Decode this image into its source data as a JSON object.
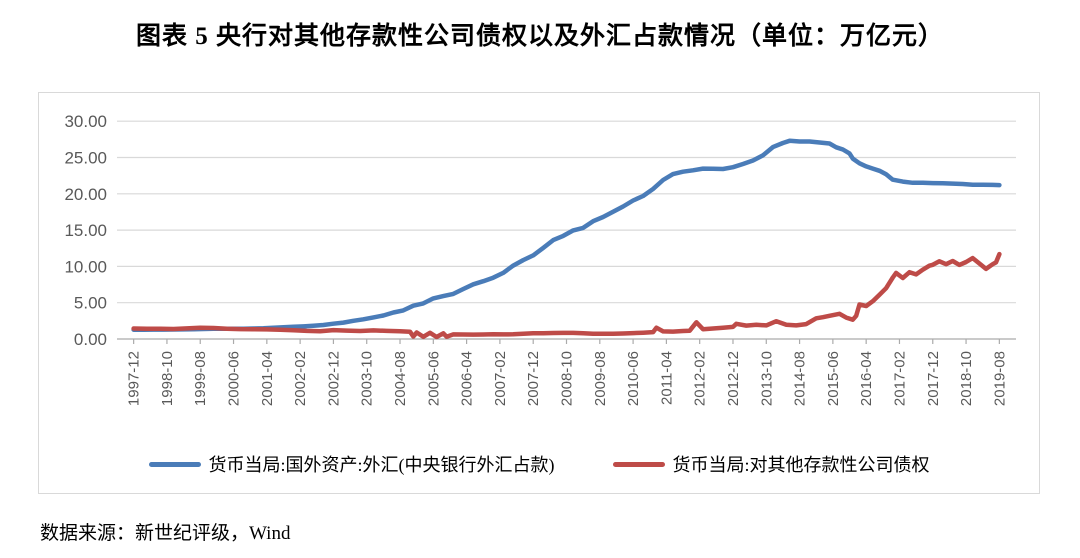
{
  "title": "图表 5  央行对其他存款性公司债权以及外汇占款情况（单位：万亿元）",
  "footer": "数据来源：新世纪评级，Wind",
  "colors": {
    "blue_series": "#4A7CB8",
    "red_series": "#BE4B48",
    "gridline": "#D9D9D9",
    "axis_line": "#ABABAB",
    "tick": "#ABABAB",
    "axis_label": "#595959",
    "chart_border": "#D9D9D9"
  },
  "chart_data": {
    "type": "line",
    "title": "央行对其他存款性公司债权以及外汇占款情况",
    "unit": "万亿元",
    "grid": true,
    "legend_position": "bottom",
    "ylim": [
      0,
      30
    ],
    "yticks": [
      0,
      5,
      10,
      15,
      20,
      25,
      30
    ],
    "ytick_labels": [
      "0.00",
      "5.00",
      "10.00",
      "15.00",
      "20.00",
      "25.00",
      "30.00"
    ],
    "x_start": "1997-12",
    "x_end": "2019-08",
    "x_axis_labels": [
      "1997-12",
      "1998-10",
      "1999-08",
      "2000-06",
      "2001-04",
      "2002-02",
      "2002-12",
      "2003-10",
      "2004-08",
      "2005-06",
      "2006-04",
      "2007-02",
      "2007-12",
      "2008-10",
      "2009-08",
      "2010-06",
      "2011-04",
      "2012-02",
      "2012-12",
      "2013-10",
      "2014-08",
      "2015-06",
      "2016-04",
      "2017-02",
      "2017-12",
      "2018-10",
      "2019-08"
    ],
    "series": [
      {
        "name": "货币当局:国外资产:外汇(中央银行外汇占款)",
        "color": "#4A7CB8",
        "points": [
          [
            "1997-12",
            1.28
          ],
          [
            "1998-03",
            1.28
          ],
          [
            "1998-06",
            1.3
          ],
          [
            "1998-09",
            1.3
          ],
          [
            "1998-12",
            1.31
          ],
          [
            "1999-03",
            1.32
          ],
          [
            "1999-06",
            1.34
          ],
          [
            "1999-09",
            1.38
          ],
          [
            "1999-12",
            1.41
          ],
          [
            "2000-03",
            1.41
          ],
          [
            "2000-06",
            1.41
          ],
          [
            "2000-09",
            1.42
          ],
          [
            "2000-12",
            1.45
          ],
          [
            "2001-03",
            1.48
          ],
          [
            "2001-06",
            1.55
          ],
          [
            "2001-09",
            1.62
          ],
          [
            "2001-12",
            1.68
          ],
          [
            "2002-03",
            1.74
          ],
          [
            "2002-06",
            1.82
          ],
          [
            "2002-09",
            1.93
          ],
          [
            "2002-12",
            2.11
          ],
          [
            "2003-03",
            2.26
          ],
          [
            "2003-06",
            2.5
          ],
          [
            "2003-09",
            2.72
          ],
          [
            "2003-12",
            2.98
          ],
          [
            "2004-03",
            3.24
          ],
          [
            "2004-06",
            3.65
          ],
          [
            "2004-09",
            3.94
          ],
          [
            "2004-12",
            4.59
          ],
          [
            "2005-03",
            4.91
          ],
          [
            "2005-06",
            5.59
          ],
          [
            "2005-09",
            5.91
          ],
          [
            "2005-12",
            6.21
          ],
          [
            "2006-03",
            6.89
          ],
          [
            "2006-06",
            7.53
          ],
          [
            "2006-09",
            7.96
          ],
          [
            "2006-12",
            8.44
          ],
          [
            "2007-03",
            9.1
          ],
          [
            "2007-06",
            10.11
          ],
          [
            "2007-09",
            10.87
          ],
          [
            "2007-12",
            11.52
          ],
          [
            "2008-03",
            12.55
          ],
          [
            "2008-06",
            13.62
          ],
          [
            "2008-09",
            14.2
          ],
          [
            "2008-12",
            14.96
          ],
          [
            "2009-03",
            15.3
          ],
          [
            "2009-06",
            16.23
          ],
          [
            "2009-09",
            16.8
          ],
          [
            "2009-12",
            17.52
          ],
          [
            "2010-03",
            18.25
          ],
          [
            "2010-06",
            19.08
          ],
          [
            "2010-09",
            19.7
          ],
          [
            "2010-12",
            20.68
          ],
          [
            "2011-03",
            21.9
          ],
          [
            "2011-06",
            22.72
          ],
          [
            "2011-09",
            23.05
          ],
          [
            "2011-12",
            23.24
          ],
          [
            "2012-03",
            23.47
          ],
          [
            "2012-06",
            23.44
          ],
          [
            "2012-09",
            23.42
          ],
          [
            "2012-12",
            23.67
          ],
          [
            "2013-03",
            24.1
          ],
          [
            "2013-06",
            24.58
          ],
          [
            "2013-09",
            25.29
          ],
          [
            "2013-12",
            26.43
          ],
          [
            "2014-03",
            27.0
          ],
          [
            "2014-05",
            27.3
          ],
          [
            "2014-08",
            27.21
          ],
          [
            "2014-11",
            27.21
          ],
          [
            "2015-02",
            27.07
          ],
          [
            "2015-05",
            26.93
          ],
          [
            "2015-07",
            26.41
          ],
          [
            "2015-09",
            26.1
          ],
          [
            "2015-11",
            25.56
          ],
          [
            "2015-12",
            24.85
          ],
          [
            "2016-02",
            24.2
          ],
          [
            "2016-04",
            23.78
          ],
          [
            "2016-06",
            23.47
          ],
          [
            "2016-08",
            23.17
          ],
          [
            "2016-10",
            22.68
          ],
          [
            "2016-12",
            21.94
          ],
          [
            "2017-03",
            21.68
          ],
          [
            "2017-06",
            21.52
          ],
          [
            "2017-09",
            21.51
          ],
          [
            "2017-12",
            21.48
          ],
          [
            "2018-03",
            21.45
          ],
          [
            "2018-06",
            21.4
          ],
          [
            "2018-09",
            21.35
          ],
          [
            "2018-12",
            21.26
          ],
          [
            "2019-03",
            21.25
          ],
          [
            "2019-06",
            21.23
          ],
          [
            "2019-08",
            21.2
          ]
        ]
      },
      {
        "name": "货币当局:对其他存款性公司债权",
        "color": "#BE4B48",
        "points": [
          [
            "1997-12",
            1.44
          ],
          [
            "1998-04",
            1.42
          ],
          [
            "1998-08",
            1.4
          ],
          [
            "1998-12",
            1.38
          ],
          [
            "1999-04",
            1.46
          ],
          [
            "1999-08",
            1.55
          ],
          [
            "1999-12",
            1.52
          ],
          [
            "2000-04",
            1.42
          ],
          [
            "2000-08",
            1.37
          ],
          [
            "2000-12",
            1.35
          ],
          [
            "2001-04",
            1.32
          ],
          [
            "2001-08",
            1.27
          ],
          [
            "2001-12",
            1.2
          ],
          [
            "2002-04",
            1.12
          ],
          [
            "2002-08",
            1.08
          ],
          [
            "2002-12",
            1.23
          ],
          [
            "2003-04",
            1.16
          ],
          [
            "2003-08",
            1.1
          ],
          [
            "2003-12",
            1.18
          ],
          [
            "2004-04",
            1.12
          ],
          [
            "2004-08",
            1.06
          ],
          [
            "2004-11",
            1.0
          ],
          [
            "2004-12",
            0.34
          ],
          [
            "2005-01",
            0.9
          ],
          [
            "2005-03",
            0.3
          ],
          [
            "2005-05",
            0.85
          ],
          [
            "2005-07",
            0.28
          ],
          [
            "2005-09",
            0.78
          ],
          [
            "2005-10",
            0.32
          ],
          [
            "2005-12",
            0.64
          ],
          [
            "2006-03",
            0.62
          ],
          [
            "2006-06",
            0.6
          ],
          [
            "2006-09",
            0.62
          ],
          [
            "2006-12",
            0.66
          ],
          [
            "2007-03",
            0.63
          ],
          [
            "2007-06",
            0.65
          ],
          [
            "2007-09",
            0.71
          ],
          [
            "2007-12",
            0.79
          ],
          [
            "2008-03",
            0.8
          ],
          [
            "2008-06",
            0.83
          ],
          [
            "2008-09",
            0.84
          ],
          [
            "2008-12",
            0.84
          ],
          [
            "2009-03",
            0.78
          ],
          [
            "2009-06",
            0.73
          ],
          [
            "2009-09",
            0.72
          ],
          [
            "2009-12",
            0.72
          ],
          [
            "2010-03",
            0.76
          ],
          [
            "2010-06",
            0.81
          ],
          [
            "2010-09",
            0.87
          ],
          [
            "2010-12",
            0.95
          ],
          [
            "2011-01",
            1.55
          ],
          [
            "2011-03",
            1.05
          ],
          [
            "2011-06",
            1.02
          ],
          [
            "2011-09",
            1.1
          ],
          [
            "2011-11",
            1.15
          ],
          [
            "2012-01",
            2.3
          ],
          [
            "2012-03",
            1.35
          ],
          [
            "2012-06",
            1.45
          ],
          [
            "2012-09",
            1.55
          ],
          [
            "2012-12",
            1.67
          ],
          [
            "2013-01",
            2.1
          ],
          [
            "2013-04",
            1.85
          ],
          [
            "2013-07",
            1.95
          ],
          [
            "2013-10",
            1.88
          ],
          [
            "2014-01",
            2.45
          ],
          [
            "2014-04",
            1.95
          ],
          [
            "2014-07",
            1.88
          ],
          [
            "2014-10",
            2.05
          ],
          [
            "2015-01",
            2.85
          ],
          [
            "2015-03",
            3.0
          ],
          [
            "2015-05",
            3.2
          ],
          [
            "2015-08",
            3.47
          ],
          [
            "2015-10",
            2.95
          ],
          [
            "2015-12",
            2.66
          ],
          [
            "2016-01",
            3.2
          ],
          [
            "2016-02",
            4.75
          ],
          [
            "2016-04",
            4.55
          ],
          [
            "2016-06",
            5.2
          ],
          [
            "2016-08",
            6.1
          ],
          [
            "2016-10",
            7.0
          ],
          [
            "2016-12",
            8.47
          ],
          [
            "2017-01",
            9.1
          ],
          [
            "2017-03",
            8.4
          ],
          [
            "2017-05",
            9.2
          ],
          [
            "2017-07",
            8.9
          ],
          [
            "2017-09",
            9.55
          ],
          [
            "2017-11",
            10.1
          ],
          [
            "2017-12",
            10.22
          ],
          [
            "2018-02",
            10.7
          ],
          [
            "2018-04",
            10.3
          ],
          [
            "2018-06",
            10.75
          ],
          [
            "2018-08",
            10.2
          ],
          [
            "2018-10",
            10.6
          ],
          [
            "2018-12",
            11.15
          ],
          [
            "2019-02",
            10.4
          ],
          [
            "2019-04",
            9.65
          ],
          [
            "2019-06",
            10.3
          ],
          [
            "2019-07",
            10.55
          ],
          [
            "2019-08",
            11.7
          ]
        ]
      }
    ]
  }
}
